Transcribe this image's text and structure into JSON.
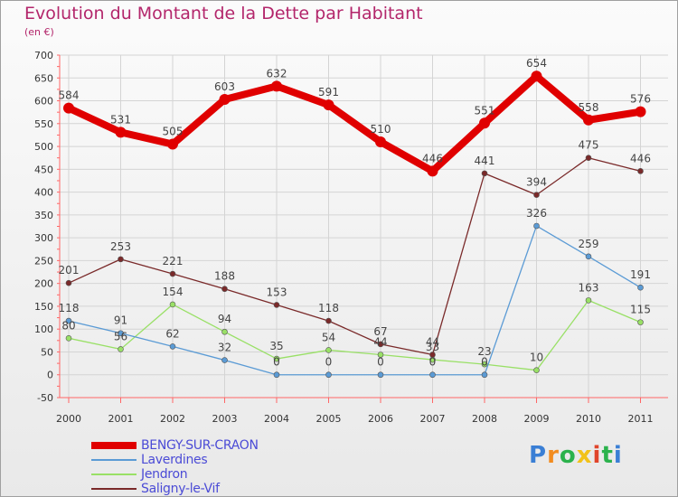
{
  "chart_data": {
    "type": "line",
    "title": "Evolution du Montant de la Dette par Habitant",
    "subtitle": "(en €)",
    "x": [
      "2000",
      "2001",
      "2002",
      "2003",
      "2004",
      "2005",
      "2006",
      "2007",
      "2008",
      "2009",
      "2010",
      "2011"
    ],
    "ylim": [
      -50,
      700
    ],
    "yticks": [
      "-50",
      "0",
      "50",
      "100",
      "150",
      "200",
      "250",
      "300",
      "350",
      "400",
      "450",
      "500",
      "550",
      "600",
      "650",
      "700"
    ],
    "grid": true,
    "legend_position": "bottom-left",
    "series": [
      {
        "name": "BENGY-SUR-CRAON",
        "color": "#e00000",
        "values": [
          584,
          531,
          505,
          603,
          632,
          591,
          510,
          446,
          551,
          654,
          558,
          576
        ],
        "labels": [
          "584",
          "531",
          "505",
          "603",
          "632",
          "591",
          "510",
          "446",
          "551",
          "654",
          "558",
          "576"
        ]
      },
      {
        "name": "Laverdines",
        "color": "#5b9bd5",
        "values": [
          118,
          91,
          62,
          32,
          0,
          0,
          0,
          0,
          0,
          326,
          259,
          191
        ],
        "labels": [
          "118",
          "91",
          "62",
          "32",
          "0",
          "0",
          "0",
          "0",
          "0",
          "326",
          "259",
          "191"
        ]
      },
      {
        "name": "Jendron",
        "color": "#99e066",
        "values": [
          80,
          56,
          154,
          94,
          35,
          54,
          44,
          33,
          23,
          10,
          163,
          115
        ],
        "labels": [
          "80",
          "56",
          "154",
          "94",
          "35",
          "54",
          "44",
          "33",
          "23",
          "10",
          "163",
          "115"
        ]
      },
      {
        "name": "Saligny-le-Vif",
        "color": "#7a2a2a",
        "values": [
          201,
          253,
          221,
          188,
          153,
          118,
          67,
          44,
          441,
          394,
          475,
          446
        ],
        "labels": [
          "201",
          "253",
          "221",
          "188",
          "153",
          "118",
          "67",
          "44",
          "441",
          "394",
          "475",
          "446"
        ]
      }
    ]
  },
  "brand": {
    "logo": "Proxiti",
    "letter_colors": [
      "#3a7fd5",
      "#f28c1f",
      "#2bb24c",
      "#f2c21a",
      "#e0452b",
      "#2bb24c",
      "#3a7fd5"
    ]
  }
}
